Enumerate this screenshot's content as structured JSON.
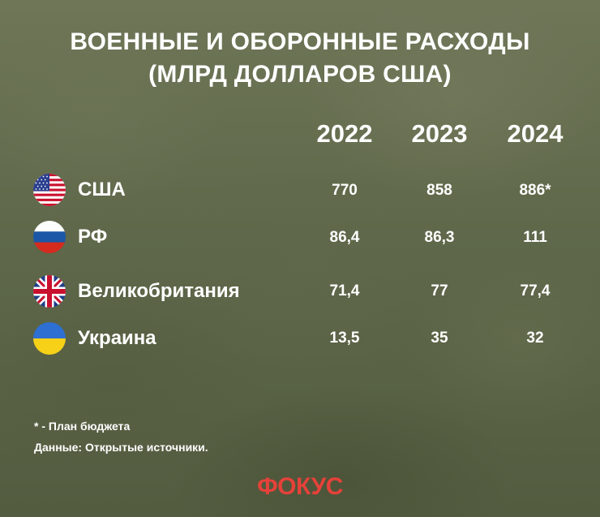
{
  "title": {
    "line1": "ВОЕННЫЕ И ОБОРОННЫЕ РАСХОДЫ",
    "line2": "(МЛРД ДОЛЛАРОВ США)"
  },
  "chart_data": {
    "type": "table",
    "title": "ВОЕННЫЕ И ОБОРОННЫЕ РАСХОДЫ (МЛРД ДОЛЛАРОВ США)",
    "columns": [
      "2022",
      "2023",
      "2024"
    ],
    "rows": [
      {
        "country": "США",
        "flag": "usa-flag-icon",
        "values": [
          "770",
          "858",
          "886*"
        ]
      },
      {
        "country": "РФ",
        "flag": "russia-flag-icon",
        "values": [
          "86,4",
          "86,3",
          "111"
        ]
      },
      {
        "country": "Великобритания",
        "flag": "uk-flag-icon",
        "values": [
          "71,4",
          "77",
          "77,4"
        ]
      },
      {
        "country": "Украина",
        "flag": "ukraine-flag-icon",
        "values": [
          "13,5",
          "35",
          "32"
        ]
      }
    ]
  },
  "footnotes": {
    "budget_note": "* - План бюджета",
    "source": "Данные: Открытые источники."
  },
  "logo": {
    "text": "ФОКУС",
    "color": "#e5413a"
  }
}
